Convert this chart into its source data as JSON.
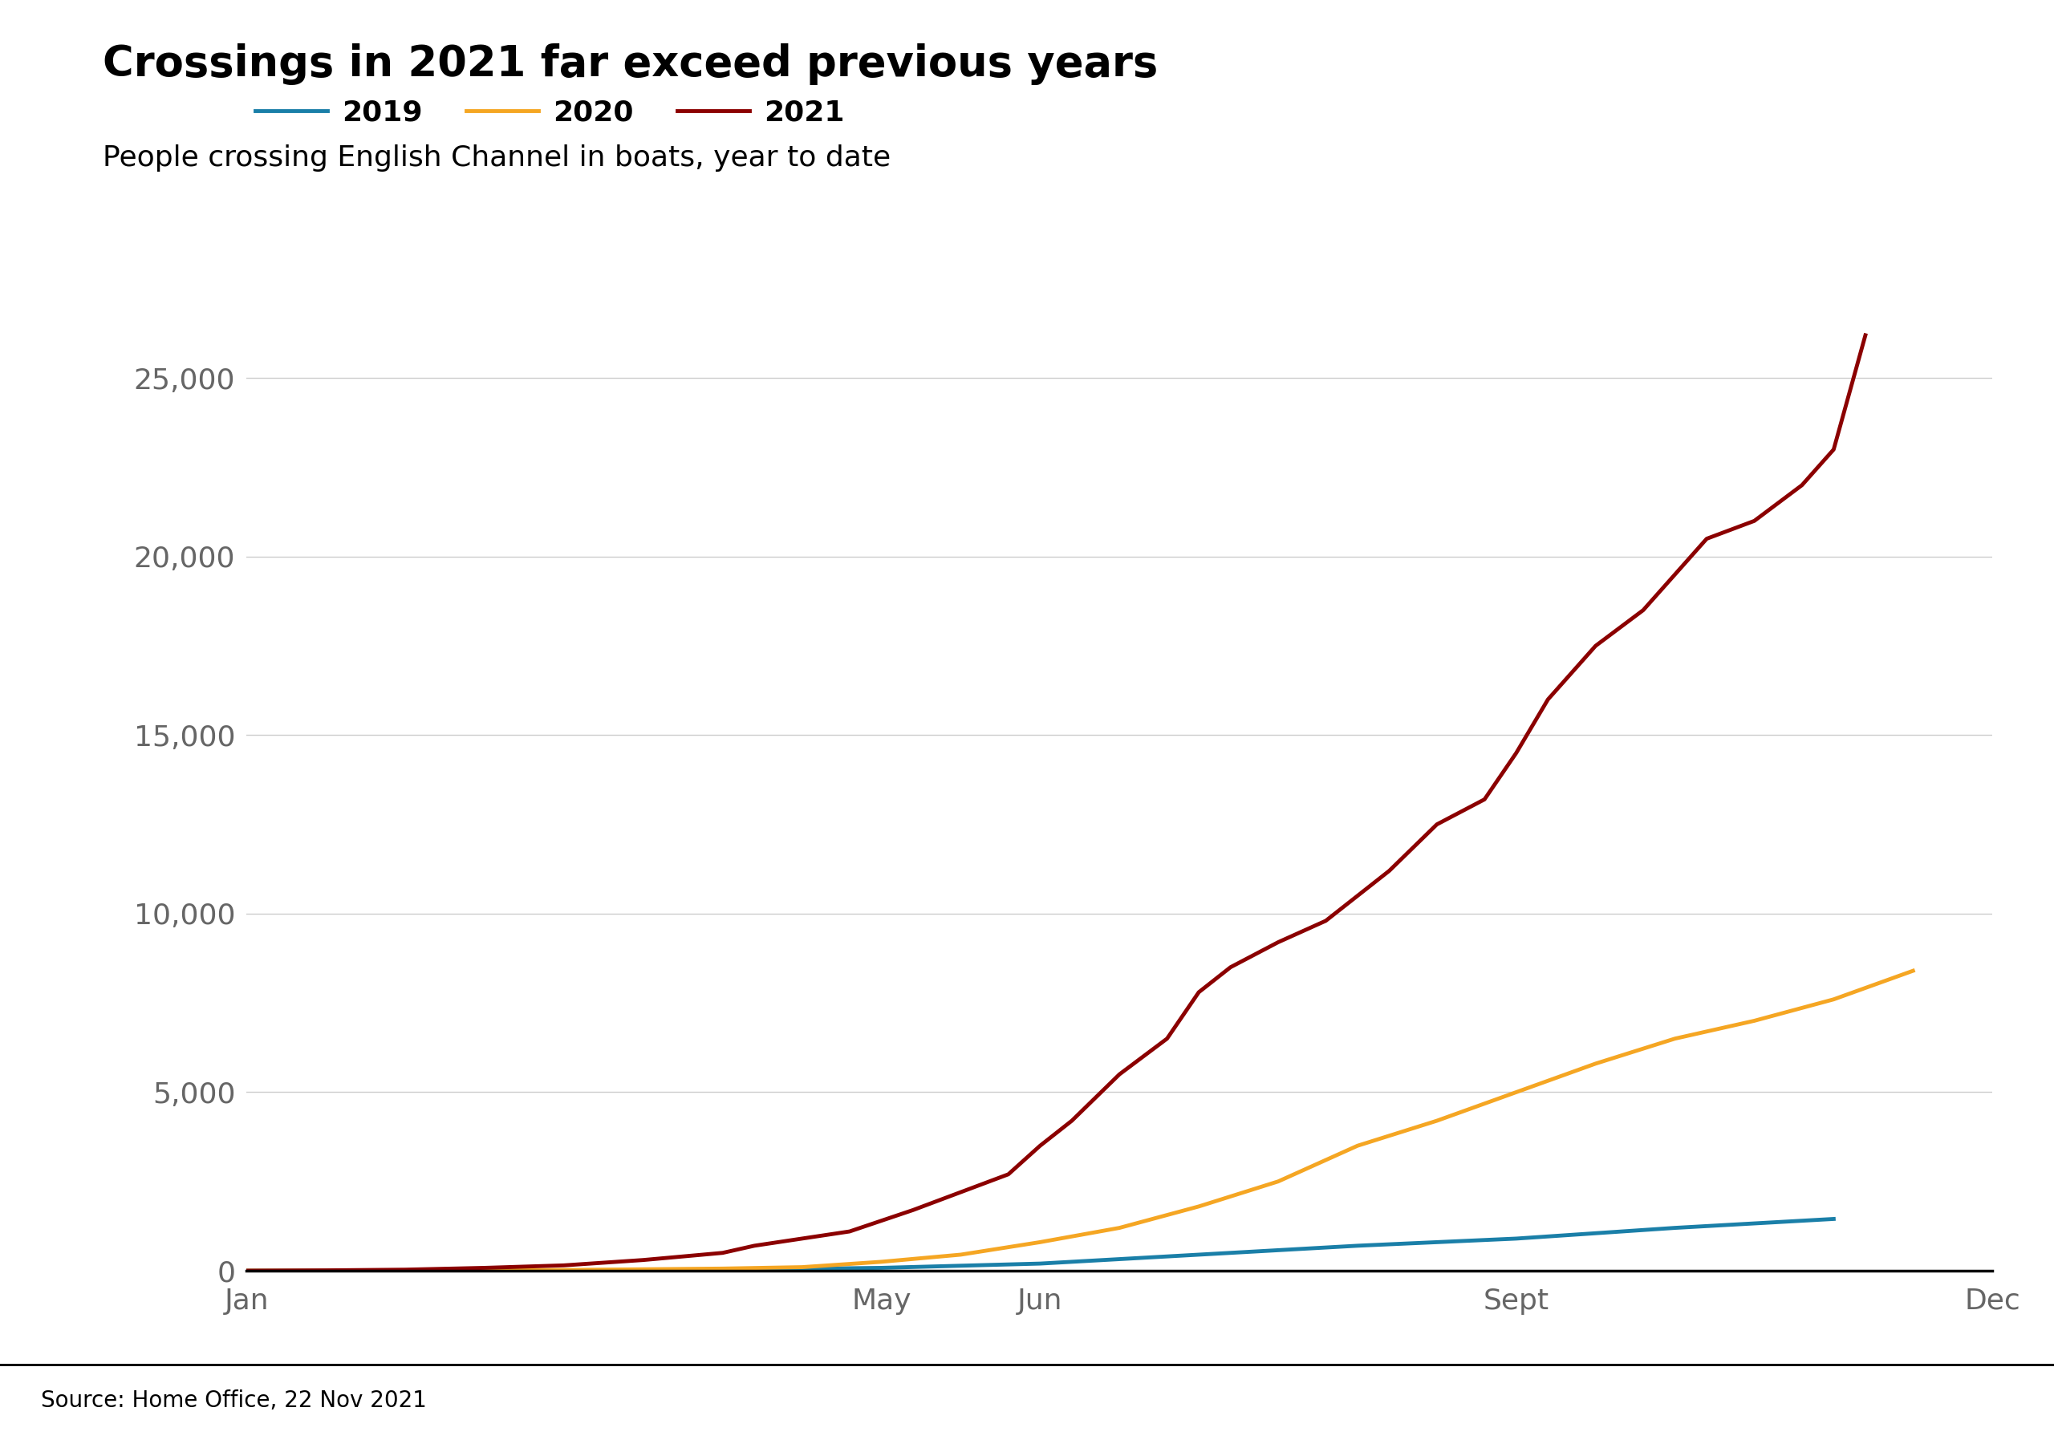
{
  "title": "Crossings in 2021 far exceed previous years",
  "subtitle": "People crossing English Channel in boats, year to date",
  "source": "Source: Home Office, 22 Nov 2021",
  "line_colors": {
    "2019": "#1a7fa8",
    "2020": "#f5a623",
    "2021": "#8b0000"
  },
  "yticks": [
    0,
    5000,
    10000,
    15000,
    20000,
    25000
  ],
  "xtick_labels": [
    "Jan",
    "May",
    "Jun",
    "Sept",
    "Dec"
  ],
  "xtick_positions": [
    1,
    5,
    6,
    9,
    12
  ],
  "ylim": [
    0,
    27500
  ],
  "data_2019": {
    "months": [
      1,
      2,
      3,
      4,
      5,
      6,
      7,
      8,
      9,
      10,
      11
    ],
    "values": [
      0,
      0,
      10,
      30,
      80,
      200,
      450,
      700,
      900,
      1200,
      1450
    ]
  },
  "data_2020": {
    "months": [
      1,
      2,
      3,
      4,
      4.5,
      5,
      5.5,
      6,
      6.5,
      7,
      7.5,
      8,
      8.5,
      9,
      9.5,
      10,
      10.5,
      11,
      11.5
    ],
    "values": [
      0,
      0,
      20,
      60,
      100,
      250,
      450,
      800,
      1200,
      1800,
      2500,
      3500,
      4200,
      5000,
      5800,
      6500,
      7000,
      7600,
      8400
    ]
  },
  "data_2021": {
    "months": [
      1,
      1.5,
      2,
      2.5,
      3,
      3.5,
      4,
      4.2,
      4.5,
      4.8,
      5,
      5.2,
      5.5,
      5.8,
      6,
      6.2,
      6.5,
      6.8,
      7,
      7.2,
      7.5,
      7.8,
      8,
      8.2,
      8.5,
      8.8,
      9,
      9.2,
      9.5,
      9.8,
      10,
      10.2,
      10.5,
      10.8,
      11,
      11.2
    ],
    "values": [
      0,
      10,
      30,
      80,
      150,
      300,
      500,
      700,
      900,
      1100,
      1400,
      1700,
      2200,
      2700,
      3500,
      4200,
      5500,
      6500,
      7800,
      8500,
      9200,
      9800,
      10500,
      11200,
      12500,
      13200,
      14500,
      16000,
      17500,
      18500,
      19500,
      20500,
      21000,
      22000,
      23000,
      26200
    ]
  },
  "background_color": "#ffffff",
  "grid_color": "#cccccc",
  "axis_color": "#000000",
  "title_fontsize": 38,
  "subtitle_fontsize": 26,
  "legend_fontsize": 26,
  "tick_fontsize": 26,
  "source_fontsize": 20
}
